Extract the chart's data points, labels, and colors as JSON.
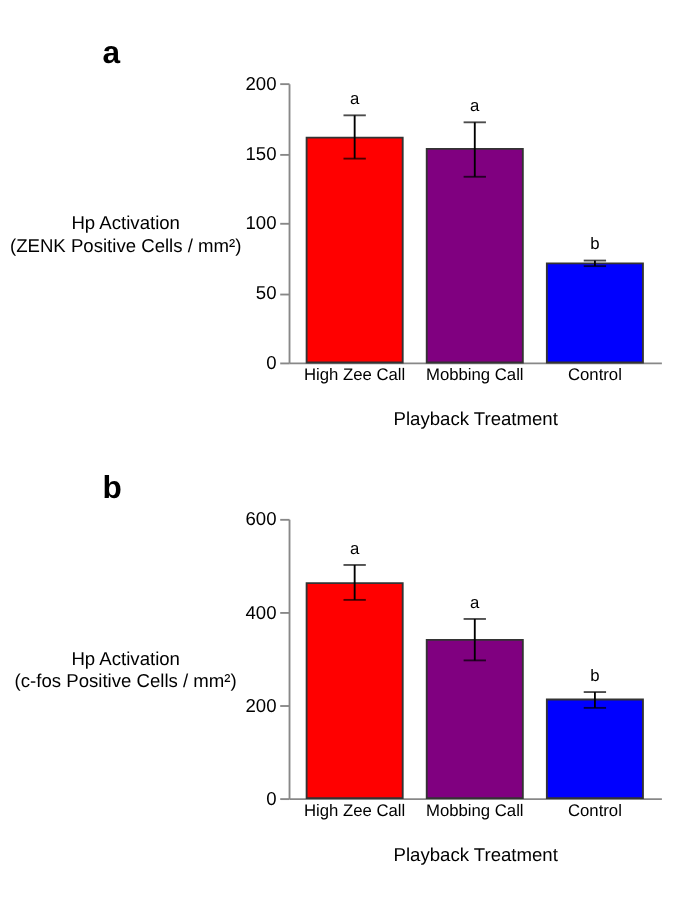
{
  "chart_data": [
    {
      "type": "bar",
      "title": "a",
      "xlabel": "Playback Treatment",
      "ylabel": "Hp Activation\n(ZENK Positive Cells / mm²)",
      "categories": [
        "High Zee Call",
        "Mobbing Call",
        "Control"
      ],
      "values": [
        161,
        153,
        71
      ],
      "colors": [
        "#ff0000",
        "#800080",
        "#0000ff"
      ],
      "errors": [
        [
          146,
          177
        ],
        [
          133,
          172
        ],
        [
          69,
          73
        ]
      ],
      "ylim": [
        0,
        200
      ],
      "yticks": [
        0,
        50,
        100,
        150,
        200
      ],
      "grid": false,
      "annotations": [
        {
          "text": "a",
          "x": "High Zee Call",
          "y": 177
        },
        {
          "text": "a",
          "x": "Mobbing Call",
          "y": 172
        },
        {
          "text": "b",
          "x": "Control",
          "y": 73
        }
      ]
    },
    {
      "type": "bar",
      "title": "b",
      "xlabel": "Playback Treatment",
      "ylabel": "Hp Activation\n(c-fos Positive Cells / mm²)",
      "categories": [
        "High Zee Call",
        "Mobbing Call",
        "Control"
      ],
      "values": [
        462,
        340,
        212
      ],
      "colors": [
        "#ff0000",
        "#800080",
        "#0000ff"
      ],
      "errors": [
        [
          426,
          501
        ],
        [
          296,
          385
        ],
        [
          194,
          228
        ]
      ],
      "ylim": [
        0,
        600
      ],
      "yticks": [
        0,
        200,
        400,
        600
      ],
      "grid": false,
      "annotations": [
        {
          "text": "a",
          "x": "High Zee Call",
          "y": 501
        },
        {
          "text": "a",
          "x": "Mobbing Call",
          "y": 385
        },
        {
          "text": "b",
          "x": "Control",
          "y": 228
        }
      ]
    }
  ]
}
